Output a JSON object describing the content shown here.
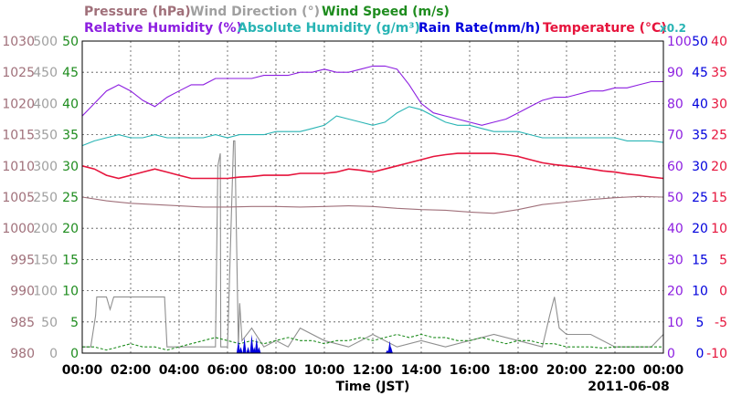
{
  "chart_data": {
    "type": "line",
    "legend": {
      "row1": [
        {
          "id": "pressure",
          "label": "Pressure (hPa)",
          "color": "#a0707a"
        },
        {
          "id": "wind_dir",
          "label": "Wind Direction (°)",
          "color": "#a0a0a0"
        },
        {
          "id": "wind_speed",
          "label": "Wind Speed (m/s)",
          "color": "#1e8c1e"
        }
      ],
      "row2": [
        {
          "id": "rh",
          "label": "Relative Humidity (%)",
          "color": "#8c1ee0"
        },
        {
          "id": "ah",
          "label": "Absolute Humidity (g/m³)",
          "color": "#28b4b4"
        },
        {
          "id": "rain",
          "label": "Rain Rate(mm/h)",
          "color": "#0000dc"
        },
        {
          "id": "temp",
          "label": "Temperature (°C)",
          "color": "#e6143c"
        },
        {
          "id": "ah_scale",
          "label": "x0.2",
          "color": "#28b4b4"
        }
      ]
    },
    "xlabel": "Time (JST)",
    "date": "2011-06-08",
    "x_ticks": [
      "00:00",
      "02:00",
      "04:00",
      "06:00",
      "08:00",
      "10:00",
      "12:00",
      "14:00",
      "16:00",
      "18:00",
      "20:00",
      "22:00",
      "00:00"
    ],
    "xlim_hours": [
      0,
      24
    ],
    "grid": true,
    "axes": {
      "pressure": {
        "ticks": [
          "1030",
          "1025",
          "1020",
          "1015",
          "1010",
          "1005",
          "1000",
          "995",
          "990",
          "985",
          "980"
        ],
        "range": [
          980,
          1030
        ],
        "color": "#a0707a"
      },
      "wind_dir": {
        "ticks": [
          "500",
          "450",
          "400",
          "350",
          "300",
          "250",
          "200",
          "150",
          "100",
          "50",
          "0"
        ],
        "range": [
          0,
          500
        ],
        "color": "#a0a0a0"
      },
      "wind_speed": {
        "ticks": [
          "50",
          "45",
          "40",
          "35",
          "30",
          "25",
          "20",
          "15",
          "10",
          "5",
          "0"
        ],
        "range": [
          0,
          50
        ],
        "color": "#1e8c1e"
      },
      "rh": {
        "ticks": [
          "100",
          "90",
          "80",
          "70",
          "60",
          "50",
          "40",
          "30",
          "20",
          "10",
          "0"
        ],
        "range": [
          0,
          100
        ],
        "color": "#8c1ee0"
      },
      "rain": {
        "ticks": [
          "50",
          "45",
          "40",
          "35",
          "30",
          "25",
          "20",
          "15",
          "10",
          "5",
          "0"
        ],
        "range": [
          0,
          50
        ],
        "color": "#0000dc"
      },
      "temp": {
        "ticks": [
          "40",
          "35",
          "30",
          "25",
          "20",
          "15",
          "10",
          "5",
          "0",
          "-5",
          "-10"
        ],
        "range": [
          -10,
          40
        ],
        "color": "#e6143c"
      }
    },
    "series": [
      {
        "name": "Relative Humidity (%)",
        "axis": "rh",
        "x": [
          0,
          0.5,
          1,
          1.5,
          2,
          2.5,
          3,
          3.5,
          4,
          4.5,
          5,
          5.5,
          6,
          6.5,
          7,
          7.5,
          8,
          8.5,
          9,
          9.5,
          10,
          10.5,
          11,
          11.5,
          12,
          12.5,
          13,
          13.5,
          14,
          14.5,
          15,
          15.5,
          16,
          16.5,
          17,
          17.5,
          18,
          18.5,
          19,
          19.5,
          20,
          20.5,
          21,
          21.5,
          22,
          22.5,
          23,
          23.5,
          24
        ],
        "values": [
          76,
          80,
          84,
          86,
          84,
          81,
          79,
          82,
          84,
          86,
          86,
          88,
          88,
          88,
          88,
          89,
          89,
          89,
          90,
          90,
          91,
          90,
          90,
          91,
          92,
          92,
          91,
          86,
          80,
          77,
          76,
          75,
          74,
          73,
          74,
          75,
          77,
          79,
          81,
          82,
          82,
          83,
          84,
          84,
          85,
          85,
          86,
          87,
          87
        ]
      },
      {
        "name": "Absolute Humidity (g/m³)",
        "axis": "rh",
        "x": [
          0,
          0.5,
          1,
          1.5,
          2,
          2.5,
          3,
          3.5,
          4,
          4.5,
          5,
          5.5,
          6,
          6.5,
          7,
          7.5,
          8,
          8.5,
          9,
          9.5,
          10,
          10.5,
          11,
          11.5,
          12,
          12.5,
          13,
          13.5,
          14,
          14.5,
          15,
          15.5,
          16,
          16.5,
          17,
          17.5,
          18,
          18.5,
          19,
          19.5,
          20,
          20.5,
          21,
          21.5,
          22,
          22.5,
          23,
          23.5,
          24
        ],
        "values": [
          66.5,
          68,
          69,
          70,
          69,
          69,
          70,
          69,
          69,
          69,
          69,
          70,
          69,
          70,
          70,
          70,
          71,
          71,
          71,
          72,
          73,
          76,
          75,
          74,
          73,
          74,
          77,
          79,
          78,
          76,
          74,
          73,
          73,
          72,
          71,
          71,
          71,
          70,
          69,
          69,
          69,
          69,
          69,
          69,
          69,
          68,
          68,
          68,
          67.5
        ]
      },
      {
        "name": "Temperature (°C)",
        "axis": "temp",
        "x": [
          0,
          0.5,
          1,
          1.5,
          2,
          2.5,
          3,
          3.5,
          4,
          4.5,
          5,
          5.5,
          6,
          6.5,
          7,
          7.5,
          8,
          8.5,
          9,
          9.5,
          10,
          10.5,
          11,
          11.5,
          12,
          12.5,
          13,
          13.5,
          14,
          14.5,
          15,
          15.5,
          16,
          16.5,
          17,
          17.5,
          18,
          18.5,
          19,
          19.5,
          20,
          20.5,
          21,
          21.5,
          22,
          22.5,
          23,
          23.5,
          24
        ],
        "values": [
          20,
          19.5,
          18.5,
          18,
          18.5,
          19,
          19.5,
          19,
          18.5,
          18,
          18,
          18,
          18,
          18.2,
          18.3,
          18.5,
          18.5,
          18.5,
          18.8,
          18.8,
          18.8,
          19,
          19.5,
          19.3,
          19,
          19.5,
          20,
          20.5,
          21,
          21.5,
          21.8,
          22,
          22,
          22,
          22,
          21.8,
          21.5,
          21,
          20.5,
          20.2,
          20,
          19.8,
          19.5,
          19.2,
          19,
          18.7,
          18.5,
          18.2,
          18
        ]
      },
      {
        "name": "Pressure (hPa)",
        "axis": "pressure",
        "x": [
          0,
          1,
          2,
          3,
          4,
          5,
          6,
          7,
          8,
          9,
          10,
          11,
          12,
          13,
          14,
          15,
          16,
          17,
          18,
          19,
          20,
          21,
          22,
          23,
          24
        ],
        "values": [
          1005,
          1004.4,
          1004,
          1003.8,
          1003.6,
          1003.4,
          1003.4,
          1003.5,
          1003.5,
          1003.4,
          1003.5,
          1003.6,
          1003.5,
          1003.2,
          1003,
          1002.9,
          1002.6,
          1002.4,
          1003,
          1003.8,
          1004.2,
          1004.6,
          1004.9,
          1005.1,
          1005
        ]
      },
      {
        "name": "Wind Direction (°)",
        "axis": "wind_dir",
        "x": [
          0,
          0.35,
          0.55,
          0.6,
          1.0,
          1.15,
          1.3,
          2.5,
          3.4,
          3.5,
          5.5,
          5.6,
          5.7,
          5.72,
          5.85,
          6.0,
          6.25,
          6.3,
          6.45,
          6.5,
          6.6,
          7.0,
          7.5,
          8.0,
          8.5,
          9.0,
          10.0,
          11.0,
          12.0,
          13.0,
          14.0,
          15.0,
          16.0,
          17.0,
          18.0,
          19.0,
          19.3,
          19.5,
          19.7,
          20.0,
          21.0,
          22.0,
          23.0,
          23.5,
          24
        ],
        "values": [
          10,
          10,
          60,
          90,
          90,
          70,
          90,
          90,
          90,
          10,
          10,
          300,
          320,
          10,
          10,
          10,
          340,
          340,
          10,
          80,
          20,
          40,
          10,
          20,
          10,
          40,
          20,
          10,
          30,
          10,
          20,
          10,
          20,
          30,
          20,
          10,
          60,
          90,
          40,
          30,
          30,
          10,
          10,
          10,
          30
        ]
      },
      {
        "name": "Wind Speed (m/s)",
        "axis": "wind_speed",
        "x": [
          0,
          0.5,
          1,
          1.5,
          2,
          2.5,
          3,
          3.5,
          4,
          4.5,
          5,
          5.5,
          6,
          6.5,
          7,
          7.5,
          8,
          8.5,
          9,
          9.5,
          10,
          10.5,
          11,
          11.5,
          12,
          12.5,
          13,
          13.5,
          14,
          14.5,
          15,
          15.5,
          16,
          16.5,
          17,
          17.5,
          18,
          18.5,
          19,
          19.5,
          20,
          20.5,
          21,
          21.5,
          22,
          22.5,
          23,
          23.5,
          24
        ],
        "values": [
          1,
          1,
          0.5,
          1,
          1.5,
          1,
          1,
          0.5,
          1,
          1.5,
          2,
          2.5,
          2,
          1.5,
          2,
          1.5,
          2,
          2.5,
          2,
          2,
          1.5,
          2,
          2,
          2.5,
          2,
          2.5,
          3,
          2.5,
          3,
          2.5,
          2.5,
          2,
          2,
          2.5,
          2,
          1.5,
          2,
          2,
          1.5,
          1.5,
          1,
          1,
          1,
          0.8,
          1,
          1,
          1,
          1,
          1
        ]
      },
      {
        "name": "Rain Rate(mm/h)",
        "axis": "rain",
        "x": [
          6.45,
          6.55,
          6.7,
          6.85,
          7.0,
          7.1,
          7.2,
          7.3,
          12.6,
          12.7,
          12.75
        ],
        "values": [
          2,
          1,
          2.5,
          1,
          3,
          1,
          2.5,
          1,
          0.5,
          2,
          1
        ]
      }
    ]
  }
}
